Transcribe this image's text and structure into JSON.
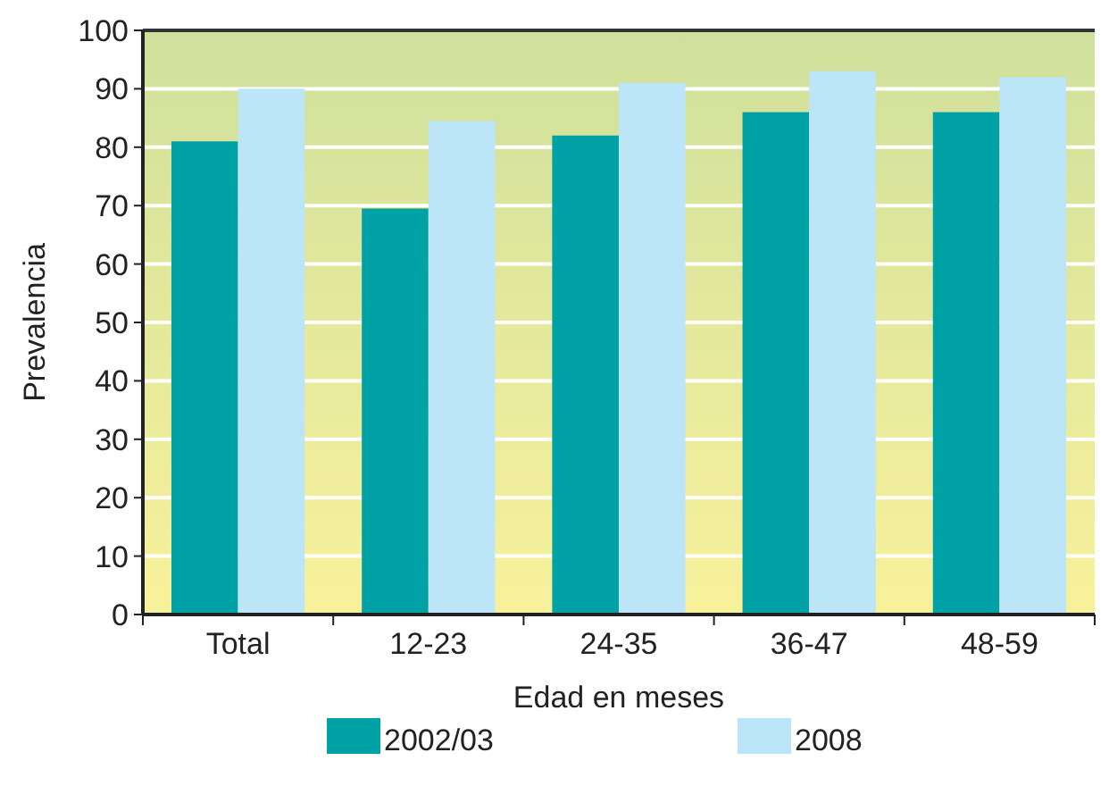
{
  "chart_data": {
    "type": "bar",
    "xlabel": "Edad en meses",
    "ylabel": "Prevalencia",
    "categories": [
      "Total",
      "12-23",
      "24-35",
      "36-47",
      "48-59"
    ],
    "series": [
      {
        "name": "2002/03",
        "color": "#00a2a6",
        "values": [
          81,
          69.5,
          82,
          86,
          86
        ]
      },
      {
        "name": "2008",
        "color": "#bde5f8",
        "values": [
          90,
          84.5,
          91,
          93,
          92
        ]
      }
    ],
    "ylim": [
      0,
      100
    ],
    "yticks": [
      0,
      10,
      20,
      30,
      40,
      50,
      60,
      70,
      80,
      90,
      100
    ],
    "grid": "y",
    "legend": "bottom"
  }
}
